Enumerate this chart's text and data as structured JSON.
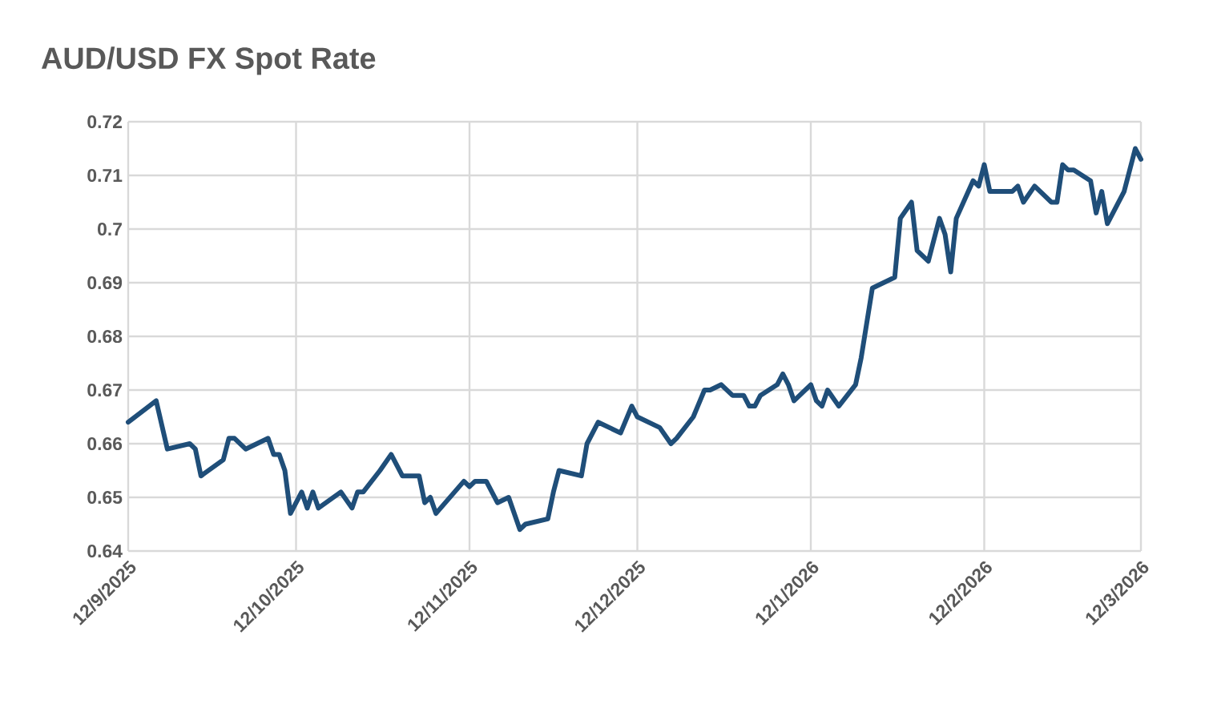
{
  "chart_data": {
    "type": "line",
    "title": "AUD/USD  FX Spot Rate",
    "x": [
      "2025-09-12",
      "2025-09-17",
      "2025-09-19",
      "2025-09-23",
      "2025-09-24",
      "2025-09-25",
      "2025-09-29",
      "2025-09-30",
      "2025-10-01",
      "2025-10-03",
      "2025-10-07",
      "2025-10-08",
      "2025-10-09",
      "2025-10-10",
      "2025-10-11",
      "2025-10-13",
      "2025-10-14",
      "2025-10-15",
      "2025-10-16",
      "2025-10-20",
      "2025-10-22",
      "2025-10-23",
      "2025-10-24",
      "2025-10-27",
      "2025-10-29",
      "2025-10-31",
      "2025-11-03",
      "2025-11-04",
      "2025-11-05",
      "2025-11-06",
      "2025-11-11",
      "2025-11-12",
      "2025-11-13",
      "2025-11-15",
      "2025-11-17",
      "2025-11-19",
      "2025-11-21",
      "2025-11-22",
      "2025-11-26",
      "2025-11-27",
      "2025-11-28",
      "2025-12-02",
      "2025-12-03",
      "2025-12-05",
      "2025-12-09",
      "2025-12-11",
      "2025-12-12",
      "2025-12-16",
      "2025-12-18",
      "2025-12-19",
      "2025-12-22",
      "2025-12-24",
      "2025-12-25",
      "2025-12-27",
      "2025-12-29",
      "2025-12-31",
      "2026-01-01",
      "2026-01-02",
      "2026-01-03",
      "2026-01-06",
      "2026-01-07",
      "2026-01-08",
      "2026-01-09",
      "2026-01-12",
      "2026-01-13",
      "2026-01-14",
      "2026-01-15",
      "2026-01-17",
      "2026-01-20",
      "2026-01-21",
      "2026-01-23",
      "2026-01-27",
      "2026-01-28",
      "2026-01-30",
      "2026-01-31",
      "2026-02-02",
      "2026-02-04",
      "2026-02-05",
      "2026-02-06",
      "2026-02-07",
      "2026-02-10",
      "2026-02-11",
      "2026-02-12",
      "2026-02-13",
      "2026-02-17",
      "2026-02-18",
      "2026-02-19",
      "2026-02-21",
      "2026-02-24",
      "2026-02-25",
      "2026-02-26",
      "2026-02-27",
      "2026-02-28",
      "2026-03-03",
      "2026-03-04",
      "2026-03-05",
      "2026-03-06",
      "2026-03-09",
      "2026-03-11",
      "2026-03-12"
    ],
    "series": [
      {
        "color": "#1f4e79",
        "values": [
          0.664,
          0.668,
          0.659,
          0.66,
          0.659,
          0.654,
          0.657,
          0.661,
          0.661,
          0.659,
          0.661,
          0.658,
          0.658,
          0.655,
          0.647,
          0.651,
          0.648,
          0.651,
          0.648,
          0.651,
          0.648,
          0.651,
          0.651,
          0.655,
          0.658,
          0.654,
          0.654,
          0.649,
          0.65,
          0.647,
          0.653,
          0.652,
          0.653,
          0.653,
          0.649,
          0.65,
          0.644,
          0.645,
          0.646,
          0.651,
          0.655,
          0.654,
          0.66,
          0.664,
          0.662,
          0.667,
          0.665,
          0.663,
          0.66,
          0.661,
          0.665,
          0.67,
          0.67,
          0.671,
          0.669,
          0.669,
          0.667,
          0.667,
          0.669,
          0.671,
          0.673,
          0.671,
          0.668,
          0.671,
          0.668,
          0.667,
          0.67,
          0.667,
          0.671,
          0.676,
          0.689,
          0.691,
          0.702,
          0.705,
          0.696,
          0.694,
          0.702,
          0.699,
          0.692,
          0.702,
          0.709,
          0.708,
          0.712,
          0.707,
          0.707,
          0.708,
          0.705,
          0.708,
          0.705,
          0.705,
          0.712,
          0.711,
          0.711,
          0.709,
          0.703,
          0.707,
          0.701,
          0.707,
          0.715,
          0.713
        ]
      }
    ],
    "xlim": [
      "2025-09-12",
      "2026-03-12"
    ],
    "xticks": [
      {
        "value": "2025-09-12",
        "label": "12/9/2025"
      },
      {
        "value": "2025-10-12",
        "label": "12/10/2025"
      },
      {
        "value": "2025-11-12",
        "label": "12/11/2025"
      },
      {
        "value": "2025-12-12",
        "label": "12/12/2025"
      },
      {
        "value": "2026-01-12",
        "label": "12/1/2026"
      },
      {
        "value": "2026-02-12",
        "label": "12/2/2026"
      },
      {
        "value": "2026-03-12",
        "label": "12/3/2026"
      }
    ],
    "ylim": [
      0.64,
      0.72
    ],
    "yticks": [
      0.64,
      0.65,
      0.66,
      0.67,
      0.68,
      0.69,
      0.7,
      0.71,
      0.72
    ],
    "grid": true,
    "marker": "none",
    "line_style": "solid",
    "legend": false
  }
}
